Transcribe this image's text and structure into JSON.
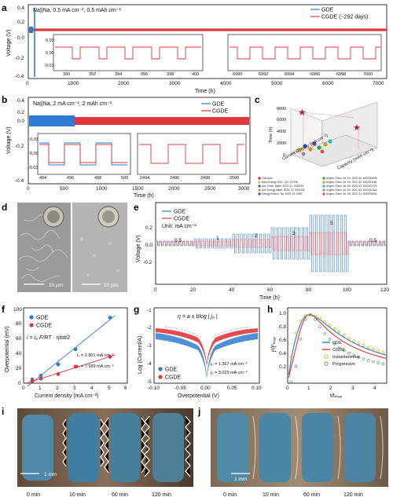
{
  "panel_labels": {
    "a": "a",
    "b": "b",
    "c": "c",
    "d": "d",
    "e": "e",
    "f": "f",
    "g": "g",
    "h": "h",
    "i": "i",
    "j": "j"
  },
  "colors": {
    "gde": "#2f7bd1",
    "cgde": "#e0383c"
  },
  "chart_data": [
    {
      "id": "a",
      "type": "line",
      "title": "Na||Na, 0.5 mA cm⁻², 0.5 mAh cm⁻²",
      "xlabel": "Time (h)",
      "ylabel": "Voltage (V)",
      "xlim": [
        0,
        7000
      ],
      "ylim": [
        -0.4,
        0.4
      ],
      "xticks": [
        "0",
        "1000",
        "2000",
        "3000",
        "4000",
        "5000",
        "6000",
        "7000"
      ],
      "yticks": [
        "0.4",
        "0.2",
        "0.0",
        "-0.2",
        "-0.4"
      ],
      "series": [
        {
          "name": "GDE",
          "short_circuit_h": 130
        },
        {
          "name": "CGDE (~292 days)",
          "end_h": 7000
        }
      ],
      "insets": [
        {
          "xticks": [
            "390",
            "392",
            "394",
            "396",
            "398",
            "400"
          ],
          "ytick_labels": [
            "0.03",
            "0.00",
            "-0.03"
          ]
        },
        {
          "xticks": [
            "6990",
            "6992",
            "6994",
            "6996",
            "6998",
            "7000"
          ]
        }
      ]
    },
    {
      "id": "b",
      "type": "line",
      "title": "Na||Na, 2 mA cm⁻², 2 mAh cm⁻²",
      "xlabel": "Time (h)",
      "ylabel": "Voltage (V)",
      "xlim": [
        0,
        3000
      ],
      "ylim": [
        -0.4,
        0.4
      ],
      "xticks": [
        "0",
        "500",
        "1000",
        "1500",
        "2000",
        "2500",
        "3000"
      ],
      "yticks": [
        "0.4",
        "0.2",
        "0.0",
        "-0.2",
        "-0.4"
      ],
      "series": [
        {
          "name": "GDE",
          "end_h": 520
        },
        {
          "name": "CGDE",
          "end_h": 3000
        }
      ],
      "insets": [
        {
          "xticks": [
            "494",
            "496",
            "498",
            "500"
          ],
          "ytick_labels": [
            "0.03",
            "0.00",
            "-0.03"
          ]
        },
        {
          "xticks": [
            "2494",
            "2496",
            "2498",
            "2500"
          ]
        }
      ]
    },
    {
      "id": "c",
      "type": "scatter",
      "ylabel": "Time (h)",
      "xlabel": "Current Density (mA cm⁻²)",
      "zlabel": "Capacity (mAh cm⁻²)",
      "yticks": [
        "0",
        "2000",
        "4000",
        "6000",
        "8000"
      ],
      "legend": [
        "This work",
        "Nano Energy 2022, 103, 107746",
        "Adv. Funct. Mater. 2023, 31, 2108078",
        "Adv. Energy Mater. 2023, 13, 2204403",
        "Energy Environ. Sci. 2023, 13, 3009.",
        "Angew. Chem. Int. Ed. 2025, 64, e202419806",
        "Angew. Chem. Int. Ed. 2023, 62, e202301166",
        "Angew. Chem. Int. Ed. 2023, 62, e202307276",
        "Angew. Chem. Int. Ed. 2023, 62, e202311344",
        "Angew. Chem. Int. Ed. 2022, 61, e202209634"
      ]
    },
    {
      "id": "e",
      "type": "line",
      "xlabel": "Time (h)",
      "ylabel": "Voltage (V)",
      "xlim": [
        0,
        120
      ],
      "xticks": [
        "0",
        "20",
        "40",
        "60",
        "80",
        "100",
        "120"
      ],
      "yticks": [
        "0.2",
        "0.0",
        "-0.2"
      ],
      "unit_note": "Unit: mA cm⁻²",
      "rate_labels": [
        "0.5",
        "1",
        "2",
        "3",
        "5",
        "0.5"
      ],
      "rates": [
        0.5,
        1,
        2,
        3,
        5,
        0.5
      ],
      "series": [
        {
          "name": "GDE"
        },
        {
          "name": "CGDE"
        }
      ]
    },
    {
      "id": "f",
      "type": "scatter",
      "xlabel": "Current density (mA cm⁻²)",
      "ylabel": "Overpotential (mV)",
      "xlim": [
        0,
        6
      ],
      "ylim": [
        0,
        100
      ],
      "xticks": [
        "0",
        "1",
        "2",
        "3",
        "4",
        "5",
        "6"
      ],
      "yticks": [
        "0",
        "20",
        "40",
        "60",
        "80",
        "100"
      ],
      "x": [
        0.5,
        1,
        2,
        3,
        5
      ],
      "series": [
        {
          "name": "GDE",
          "values": [
            5,
            10,
            25,
            45,
            87
          ]
        },
        {
          "name": "CGDE",
          "values": [
            3,
            6,
            12,
            22,
            35
          ]
        }
      ],
      "annotations": [
        "i₀ = 2.801 mA cm⁻²",
        "i₀ = 7.589 mA cm⁻²"
      ],
      "equation": "i = i₀ F/RT · ηtot/2"
    },
    {
      "id": "g",
      "type": "line",
      "xlabel": "Overpotential (V)",
      "ylabel": "Log (Current/A)",
      "xlim": [
        -0.1,
        0.1
      ],
      "ylim": [
        -5,
        -1
      ],
      "xticks": [
        "-0.10",
        "-0.05",
        "0.00",
        "0.05",
        "0.10"
      ],
      "yticks": [
        "-1",
        "-2",
        "-3",
        "-4",
        "-5"
      ],
      "equation": "η = a ± blog | j₀ |",
      "series": [
        {
          "name": "GDE"
        },
        {
          "name": "CGDE"
        }
      ],
      "annotations": [
        "j₀ = 1.367 mA cm⁻²",
        "j₀ = 3.025 mA cm⁻²"
      ]
    },
    {
      "id": "h",
      "type": "line",
      "xlabel": "t/tₘₐₓ",
      "ylabel": "j²/j²ₘₐₓ",
      "xlim": [
        0,
        4.5
      ],
      "ylim": [
        0,
        1.1
      ],
      "xticks": [
        "0",
        "1",
        "2",
        "3",
        "4"
      ],
      "yticks": [
        "0.2",
        "0.4",
        "0.6",
        "0.8",
        "1.0"
      ],
      "series": [
        {
          "name": "GDE"
        },
        {
          "name": "CGDE"
        },
        {
          "name": "Instantaneous"
        },
        {
          "name": "Progressive"
        }
      ]
    }
  ],
  "images": {
    "d": {
      "scale_left": "10 μm",
      "scale_right": "10 μm"
    },
    "i": {
      "scale": "1 mm",
      "times": [
        "0 min",
        "10 min",
        "60 min",
        "120 min"
      ]
    },
    "j": {
      "scale": "1 mm",
      "times": [
        "0 min",
        "10 min",
        "60 min",
        "120 min"
      ]
    }
  }
}
